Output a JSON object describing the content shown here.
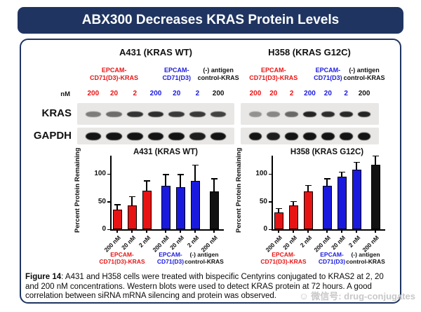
{
  "title": "ABX300 Decreases KRAS Protein Levels",
  "colors": {
    "navy": "#1F3460",
    "red": "#E81414",
    "blue": "#1A1ADF",
    "black": "#121212"
  },
  "panels": {
    "left_heading": "A431 (KRAS WT)",
    "right_heading": "H358 (KRAS G12C)"
  },
  "blots": {
    "nm_label": "nM",
    "row_labels": [
      "KRAS",
      "GAPDH"
    ],
    "doses": [
      "200",
      "20",
      "2",
      "200",
      "20",
      "2",
      "200"
    ],
    "dose_colors": [
      "red",
      "red",
      "red",
      "blue",
      "blue",
      "blue",
      "black"
    ],
    "groups": [
      {
        "line1": "EPCAM-",
        "line2": "CD71(D3)-KRAS",
        "color": "red",
        "lanes": [
          0,
          1,
          2
        ]
      },
      {
        "line1": "EPCAM-",
        "line2": "CD71(D3)",
        "color": "blue",
        "lanes": [
          3,
          4,
          5
        ]
      },
      {
        "line1": "(-) antigen",
        "line2": "control-KRAS",
        "color": "black",
        "lanes": [
          6
        ]
      }
    ],
    "panels": [
      {
        "name": "A431",
        "kras_bands": [
          0.5,
          0.58,
          0.85,
          0.88,
          0.82,
          0.82,
          0.78
        ],
        "gapdh_bands": [
          1,
          1,
          1,
          1,
          1,
          0.95,
          1
        ]
      },
      {
        "name": "H358",
        "kras_bands": [
          0.4,
          0.45,
          0.6,
          0.92,
          0.88,
          0.9,
          0.92
        ],
        "gapdh_bands": [
          1,
          0.95,
          1,
          1,
          1,
          1,
          1
        ]
      }
    ]
  },
  "chart_data": [
    {
      "type": "bar",
      "title": "A431 (KRAS WT)",
      "ylabel": "Percent Protein Remaining",
      "xlabel": "",
      "yticks": [
        0,
        50,
        100
      ],
      "ylim": [
        0,
        140
      ],
      "grid": false,
      "legend": "none",
      "categories": [
        "200 nM",
        "20 nM",
        "2 nM",
        "200 nM",
        "20 nM",
        "2 nM",
        "200 nM"
      ],
      "values": [
        35,
        43,
        70,
        78,
        76,
        87,
        68
      ],
      "errors": [
        10,
        17,
        18,
        22,
        24,
        30,
        24
      ],
      "bar_colors": [
        "red",
        "red",
        "red",
        "blue",
        "blue",
        "blue",
        "black"
      ],
      "group_labels": [
        {
          "line1": "EPCAM-",
          "line2": "CD71(D3)-KRAS",
          "color": "red",
          "lanes": [
            0,
            1,
            2
          ]
        },
        {
          "line1": "EPCAM-",
          "line2": "CD71(D3)",
          "color": "blue",
          "lanes": [
            3,
            4,
            5
          ]
        },
        {
          "line1": "(-) antigen",
          "line2": "control-KRAS",
          "color": "black",
          "lanes": [
            6
          ]
        }
      ]
    },
    {
      "type": "bar",
      "title": "H358 (KRAS G12C)",
      "ylabel": "Percent Protein Remaining",
      "xlabel": "",
      "yticks": [
        0,
        50,
        100
      ],
      "ylim": [
        0,
        140
      ],
      "grid": false,
      "legend": "none",
      "categories": [
        "200 nM",
        "20 nM",
        "2 nM",
        "200 nM",
        "20 nM",
        "2 nM",
        "200 nM"
      ],
      "values": [
        30,
        43,
        68,
        79,
        95,
        107,
        117
      ],
      "errors": [
        8,
        8,
        12,
        13,
        9,
        15,
        16
      ],
      "bar_colors": [
        "red",
        "red",
        "red",
        "blue",
        "blue",
        "blue",
        "black"
      ],
      "group_labels": [
        {
          "line1": "EPCAM-",
          "line2": "CD71(D3)-KRAS",
          "color": "red",
          "lanes": [
            0,
            1,
            2
          ]
        },
        {
          "line1": "EPCAM-",
          "line2": "CD71(D3)",
          "color": "blue",
          "lanes": [
            3,
            4,
            5
          ]
        },
        {
          "line1": "(-) antigen",
          "line2": "control-KRAS",
          "color": "black",
          "lanes": [
            6
          ]
        }
      ]
    }
  ],
  "caption": {
    "bold": "Figure 14",
    "text": ": A431 and H358 cells were treated with bispecific Centyrins conjugated to KRAS2 at 2, 20 and 200 nM concentrations. Western blots were used to detect KRAS protein at 72 hours. A good correlation between siRNA mRNA silencing and protein was observed."
  },
  "watermark": "微信号: drug-conjugates"
}
